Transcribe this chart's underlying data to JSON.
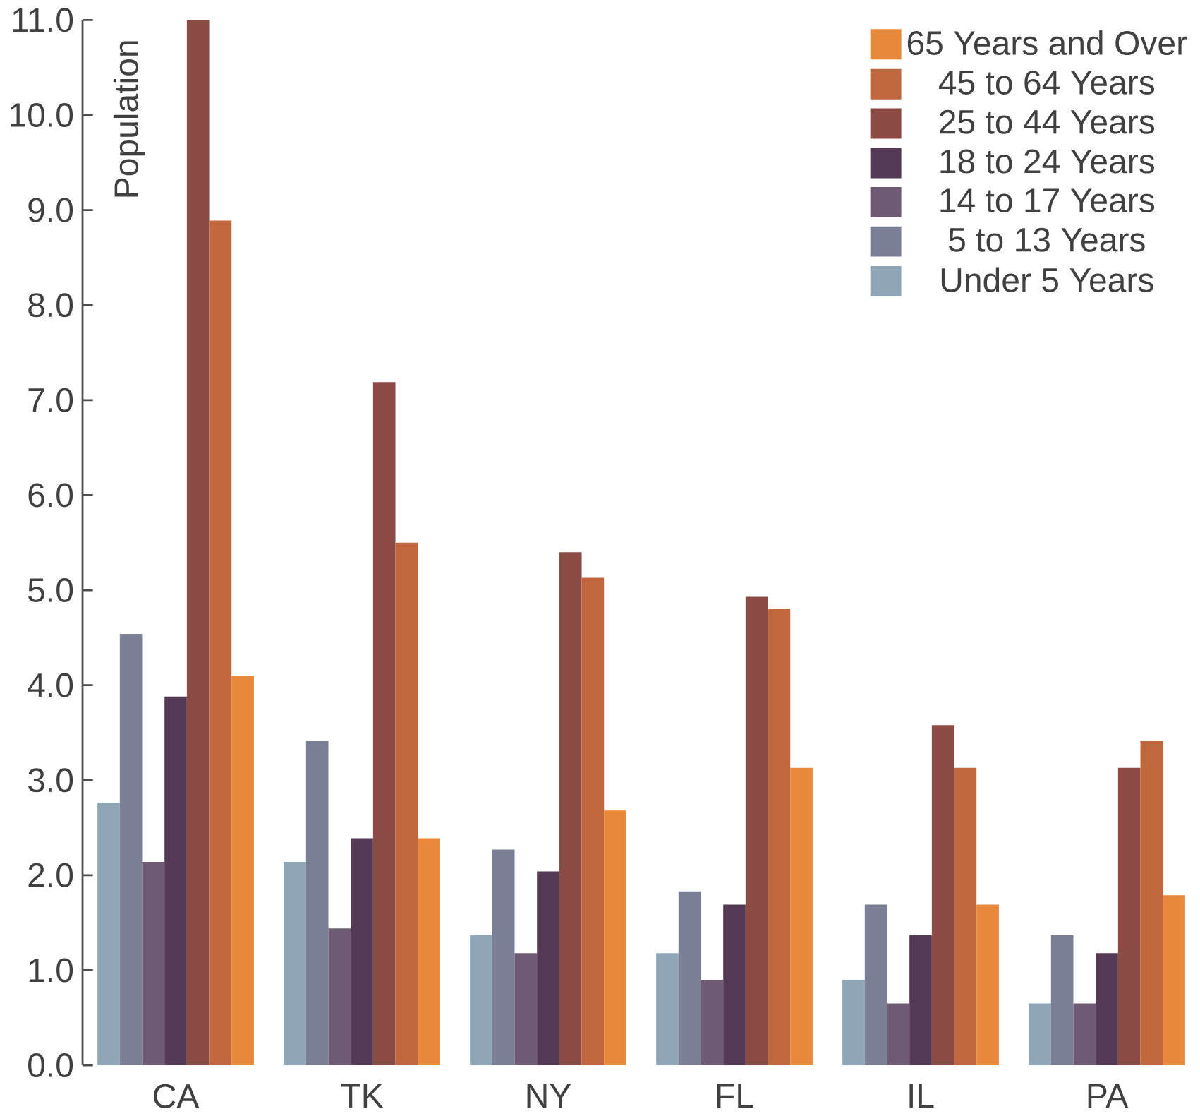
{
  "chart_data": {
    "type": "bar",
    "ylabel": "Population",
    "categories": [
      "CA",
      "TK",
      "NY",
      "FL",
      "IL",
      "PA"
    ],
    "series": [
      {
        "name": "Under 5 Years",
        "color": "#8fa6b8",
        "values": [
          2.76,
          2.14,
          1.37,
          1.18,
          0.9,
          0.65
        ]
      },
      {
        "name": "5 to 13 Years",
        "color": "#7b7f96",
        "values": [
          4.54,
          3.41,
          2.27,
          1.83,
          1.69,
          1.37
        ]
      },
      {
        "name": "14 to 17 Years",
        "color": "#6e5a73",
        "values": [
          2.14,
          1.44,
          1.18,
          0.9,
          0.65,
          0.65
        ]
      },
      {
        "name": "18 to 24 Years",
        "color": "#553a55",
        "values": [
          3.88,
          2.39,
          2.04,
          1.69,
          1.37,
          1.18
        ]
      },
      {
        "name": "25 to 44 Years",
        "color": "#8c4a45",
        "values": [
          11.0,
          7.19,
          5.4,
          4.93,
          3.58,
          3.13
        ]
      },
      {
        "name": "45 to 64 Years",
        "color": "#c0673d",
        "values": [
          8.89,
          5.5,
          5.13,
          4.8,
          3.13,
          3.41
        ]
      },
      {
        "name": "65 Years and Over",
        "color": "#e8883a",
        "values": [
          4.1,
          2.39,
          2.68,
          3.13,
          1.69,
          1.79
        ]
      }
    ],
    "ylim": [
      0,
      11
    ],
    "yticks": [
      {
        "value": 0,
        "label": "0.0"
      },
      {
        "value": 1,
        "label": "1.0"
      },
      {
        "value": 2,
        "label": "2.0"
      },
      {
        "value": 3,
        "label": "3.0"
      },
      {
        "value": 4,
        "label": "4.0"
      },
      {
        "value": 5,
        "label": "5.0"
      },
      {
        "value": 6,
        "label": "6.0"
      },
      {
        "value": 7,
        "label": "7.0"
      },
      {
        "value": 8,
        "label": "8.0"
      },
      {
        "value": 9,
        "label": "9.0"
      },
      {
        "value": 10,
        "label": "10.0"
      },
      {
        "value": 11,
        "label": "11.0"
      }
    ],
    "legend": "top right"
  }
}
